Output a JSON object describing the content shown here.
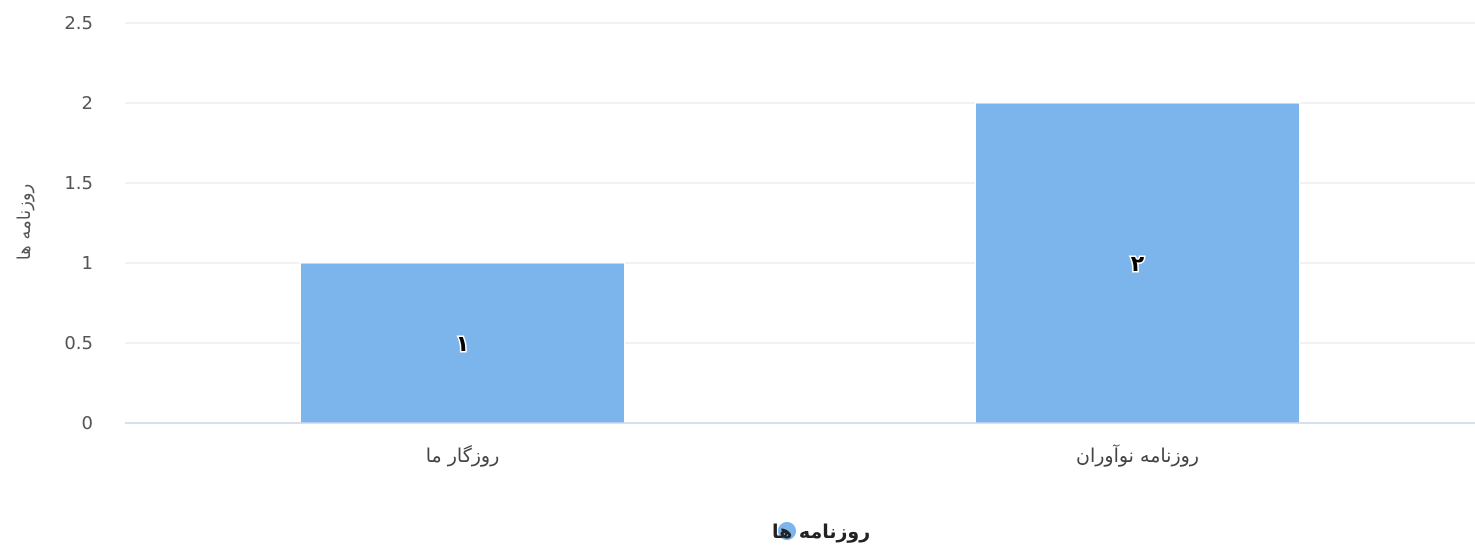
{
  "chart_data": {
    "type": "bar",
    "categories": [
      "روزگار ما",
      "روزنامه نوآوران"
    ],
    "series": [
      {
        "name": "روزنامه ها",
        "values": [
          1,
          2
        ],
        "color": "#7cb4ec"
      }
    ],
    "data_labels": [
      "۱",
      "۲"
    ],
    "ylabel": "روزنامه ها",
    "xlabel": "",
    "ylim": [
      0,
      2.5
    ],
    "yticks": [
      "0",
      "0.5",
      "1",
      "1.5",
      "2",
      "2.5"
    ],
    "grid": true,
    "legend_position": "bottom-center",
    "colors": {
      "grid": "#e6e6e6",
      "axis": "#ccd6eb"
    }
  }
}
